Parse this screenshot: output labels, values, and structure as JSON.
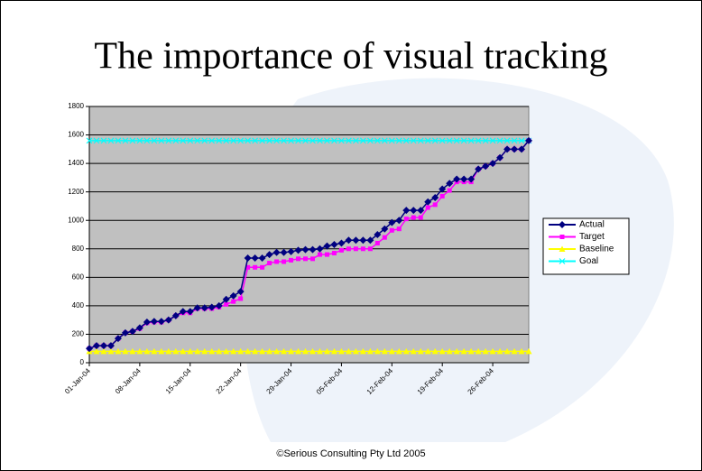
{
  "chart_data": {
    "type": "line",
    "title": "The importance of visual tracking",
    "footer": "©Serious Consulting Pty Ltd 2005",
    "categories": [
      "01-Jan-04",
      null,
      null,
      null,
      null,
      null,
      null,
      "08-Jan-04",
      null,
      null,
      null,
      null,
      null,
      null,
      "15-Jan-04",
      null,
      null,
      null,
      null,
      null,
      null,
      "22-Jan-04",
      null,
      null,
      null,
      null,
      null,
      null,
      "29-Jan-04",
      null,
      null,
      null,
      null,
      null,
      null,
      "05-Feb-04",
      null,
      null,
      null,
      null,
      null,
      null,
      "12-Feb-04",
      null,
      null,
      null,
      null,
      null,
      null,
      "19-Feb-04",
      null,
      null,
      null,
      null,
      null,
      null,
      "26-Feb-04",
      null,
      null,
      null,
      null,
      null
    ],
    "series": [
      {
        "name": "Actual",
        "color": "#000080",
        "marker": "diamond",
        "values": [
          100,
          120,
          120,
          120,
          170,
          210,
          220,
          245,
          285,
          290,
          290,
          300,
          330,
          360,
          360,
          385,
          385,
          390,
          400,
          445,
          470,
          500,
          735,
          735,
          735,
          760,
          775,
          775,
          780,
          790,
          795,
          795,
          800,
          820,
          830,
          840,
          860,
          860,
          860,
          860,
          900,
          940,
          985,
          1000,
          1070,
          1070,
          1070,
          1130,
          1160,
          1220,
          1260,
          1290,
          1290,
          1290,
          1360,
          1380,
          1400,
          1440,
          1500,
          1500,
          1500,
          1560
        ]
      },
      {
        "name": "Target",
        "color": "#ff00ff",
        "marker": "square",
        "values": [
          100,
          120,
          120,
          120,
          170,
          210,
          220,
          240,
          280,
          285,
          285,
          300,
          330,
          350,
          350,
          380,
          380,
          380,
          390,
          410,
          430,
          450,
          670,
          670,
          670,
          700,
          710,
          710,
          720,
          730,
          730,
          730,
          760,
          760,
          770,
          790,
          800,
          800,
          800,
          800,
          840,
          880,
          930,
          940,
          1010,
          1020,
          1020,
          1090,
          1110,
          1170,
          1210,
          1270,
          1270,
          1270,
          1360,
          1380,
          1400,
          1440,
          1500,
          1500,
          1500,
          1560
        ]
      },
      {
        "name": "Baseline",
        "color": "#ffff00",
        "marker": "triangle",
        "values": [
          80,
          80,
          80,
          80,
          80,
          80,
          80,
          80,
          80,
          80,
          80,
          80,
          80,
          80,
          80,
          80,
          80,
          80,
          80,
          80,
          80,
          80,
          80,
          80,
          80,
          80,
          80,
          80,
          80,
          80,
          80,
          80,
          80,
          80,
          80,
          80,
          80,
          80,
          80,
          80,
          80,
          80,
          80,
          80,
          80,
          80,
          80,
          80,
          80,
          80,
          80,
          80,
          80,
          80,
          80,
          80,
          80,
          80,
          80,
          80,
          80,
          80
        ]
      },
      {
        "name": "Goal",
        "color": "#00ffff",
        "marker": "x",
        "values": [
          1560,
          1560,
          1560,
          1560,
          1560,
          1560,
          1560,
          1560,
          1560,
          1560,
          1560,
          1560,
          1560,
          1560,
          1560,
          1560,
          1560,
          1560,
          1560,
          1560,
          1560,
          1560,
          1560,
          1560,
          1560,
          1560,
          1560,
          1560,
          1560,
          1560,
          1560,
          1560,
          1560,
          1560,
          1560,
          1560,
          1560,
          1560,
          1560,
          1560,
          1560,
          1560,
          1560,
          1560,
          1560,
          1560,
          1560,
          1560,
          1560,
          1560,
          1560,
          1560,
          1560,
          1560,
          1560,
          1560,
          1560,
          1560,
          1560,
          1560,
          1560,
          1560
        ]
      }
    ],
    "ylim": [
      0,
      1800
    ],
    "yticks": [
      0,
      200,
      400,
      600,
      800,
      1000,
      1200,
      1400,
      1600,
      1800
    ],
    "grid": true,
    "plot_background": "#c0c0c0",
    "legend": "right"
  }
}
